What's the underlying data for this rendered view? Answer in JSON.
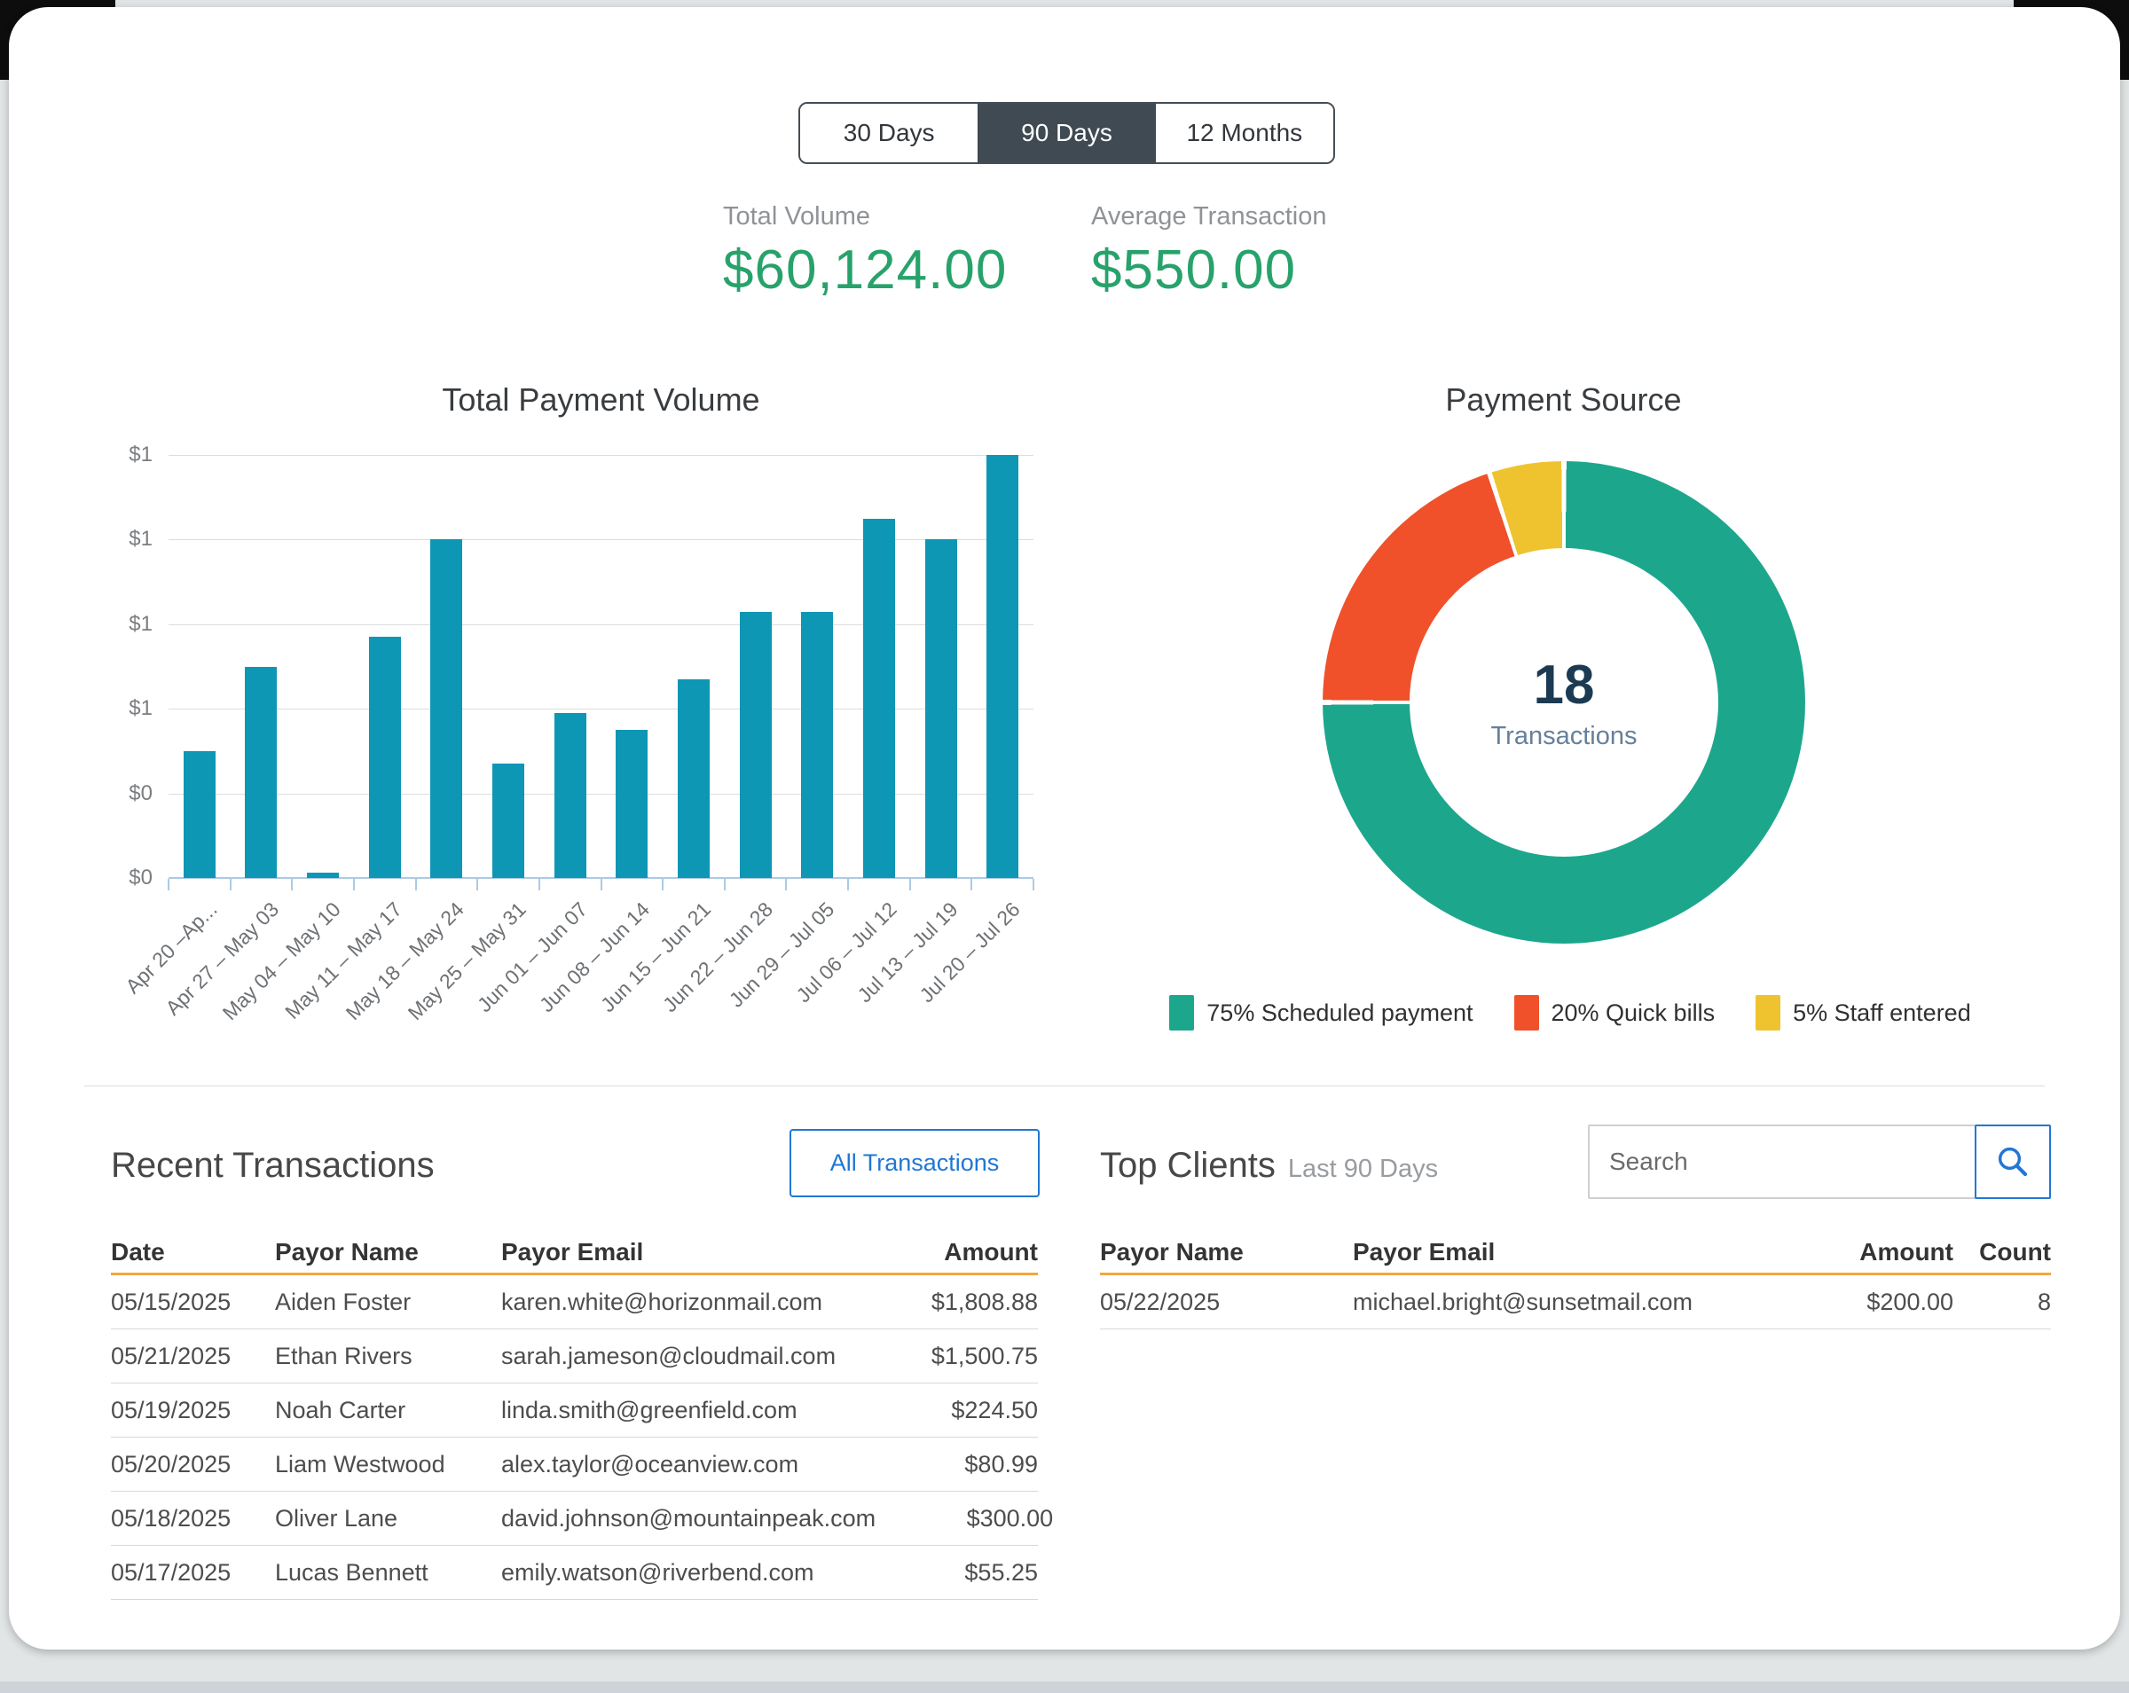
{
  "period_toggle": {
    "options": [
      "30 Days",
      "90 Days",
      "12 Months"
    ],
    "selected": "90 Days"
  },
  "metrics": {
    "total_volume": {
      "label": "Total Volume",
      "value": "$60,124.00"
    },
    "average_transaction": {
      "label": "Average Transaction",
      "value": "$550.00"
    }
  },
  "chart_data": [
    {
      "type": "bar",
      "title": "Total Payment Volume",
      "categories": [
        "Apr 20 –Ap...",
        "Apr 27 – May 03",
        "May 04 – May 10",
        "May 11 – May 17",
        "May 18 – May 24",
        "May 25 – May 31",
        "Jun 01 – Jun 07",
        "Jun 08 – Jun 14",
        "Jun 15 – Jun 21",
        "Jun 22 – Jun 28",
        "Jun 29 – Jul 05",
        "Jul 06 – Jul 12",
        "Jul 13 – Jul 19",
        "Jul 20 – Jul 26"
      ],
      "values_usd_estimated": [
        2400,
        4000,
        100,
        4550,
        6400,
        2150,
        3100,
        2800,
        3750,
        5000,
        5000,
        6800,
        6400,
        8000
      ],
      "values_relative": [
        0.3,
        0.5,
        0.012,
        0.57,
        0.8,
        0.27,
        0.39,
        0.35,
        0.47,
        0.63,
        0.63,
        0.85,
        0.8,
        1.0
      ],
      "y_tick_labels_top_to_bottom": [
        "$1",
        "$1",
        "$1",
        "$1",
        "$0",
        "$0"
      ],
      "ylim_estimated_usd": [
        0,
        8000
      ],
      "grid": true,
      "bar_color": "#0e96b5"
    },
    {
      "type": "pie",
      "subtype": "donut",
      "title": "Payment Source",
      "center_value": "18",
      "center_label": "Transactions",
      "slices": [
        {
          "label": "Scheduled payment",
          "value_pct": 75,
          "color": "#1ca78d"
        },
        {
          "label": "Quick bills",
          "value_pct": 20,
          "color": "#f0512a"
        },
        {
          "label": "Staff entered",
          "value_pct": 5,
          "color": "#efc32f"
        }
      ],
      "legend": [
        "75% Scheduled payment",
        "20% Quick bills",
        "5% Staff entered"
      ],
      "legend_position": "bottom"
    }
  ],
  "recent_transactions": {
    "title": "Recent Transactions",
    "button_label": "All Transactions",
    "columns": [
      "Date",
      "Payor Name",
      "Payor Email",
      "Amount"
    ],
    "rows": [
      [
        "05/15/2025",
        "Aiden Foster",
        "karen.white@horizonmail.com",
        "$1,808.88"
      ],
      [
        "05/21/2025",
        "Ethan Rivers",
        "sarah.jameson@cloudmail.com",
        "$1,500.75"
      ],
      [
        "05/19/2025",
        "Noah Carter",
        "linda.smith@greenfield.com",
        "$224.50"
      ],
      [
        "05/20/2025",
        "Liam Westwood",
        "alex.taylor@oceanview.com",
        "$80.99"
      ],
      [
        "05/18/2025",
        "Oliver Lane",
        "david.johnson@mountainpeak.com",
        "$300.00"
      ],
      [
        "05/17/2025",
        "Lucas Bennett",
        "emily.watson@riverbend.com",
        "$55.25"
      ]
    ]
  },
  "top_clients": {
    "title": "Top Clients",
    "subtitle": "Last 90 Days",
    "search_placeholder": "Search",
    "columns": [
      "Payor Name",
      "Payor Email",
      "Amount",
      "Count"
    ],
    "rows": [
      [
        "05/22/2025",
        "michael.bright@sunsetmail.com",
        "$200.00",
        "8"
      ]
    ]
  },
  "colors": {
    "accent_green": "#28a26b",
    "bar_teal": "#0e96b5",
    "donut_green": "#1ca78d",
    "donut_orange": "#f0512a",
    "donut_yellow": "#efc32f",
    "link_blue": "#1f77d3",
    "header_underline_orange": "#f4a63a",
    "toggle_selected_bg": "#3f4a53"
  }
}
